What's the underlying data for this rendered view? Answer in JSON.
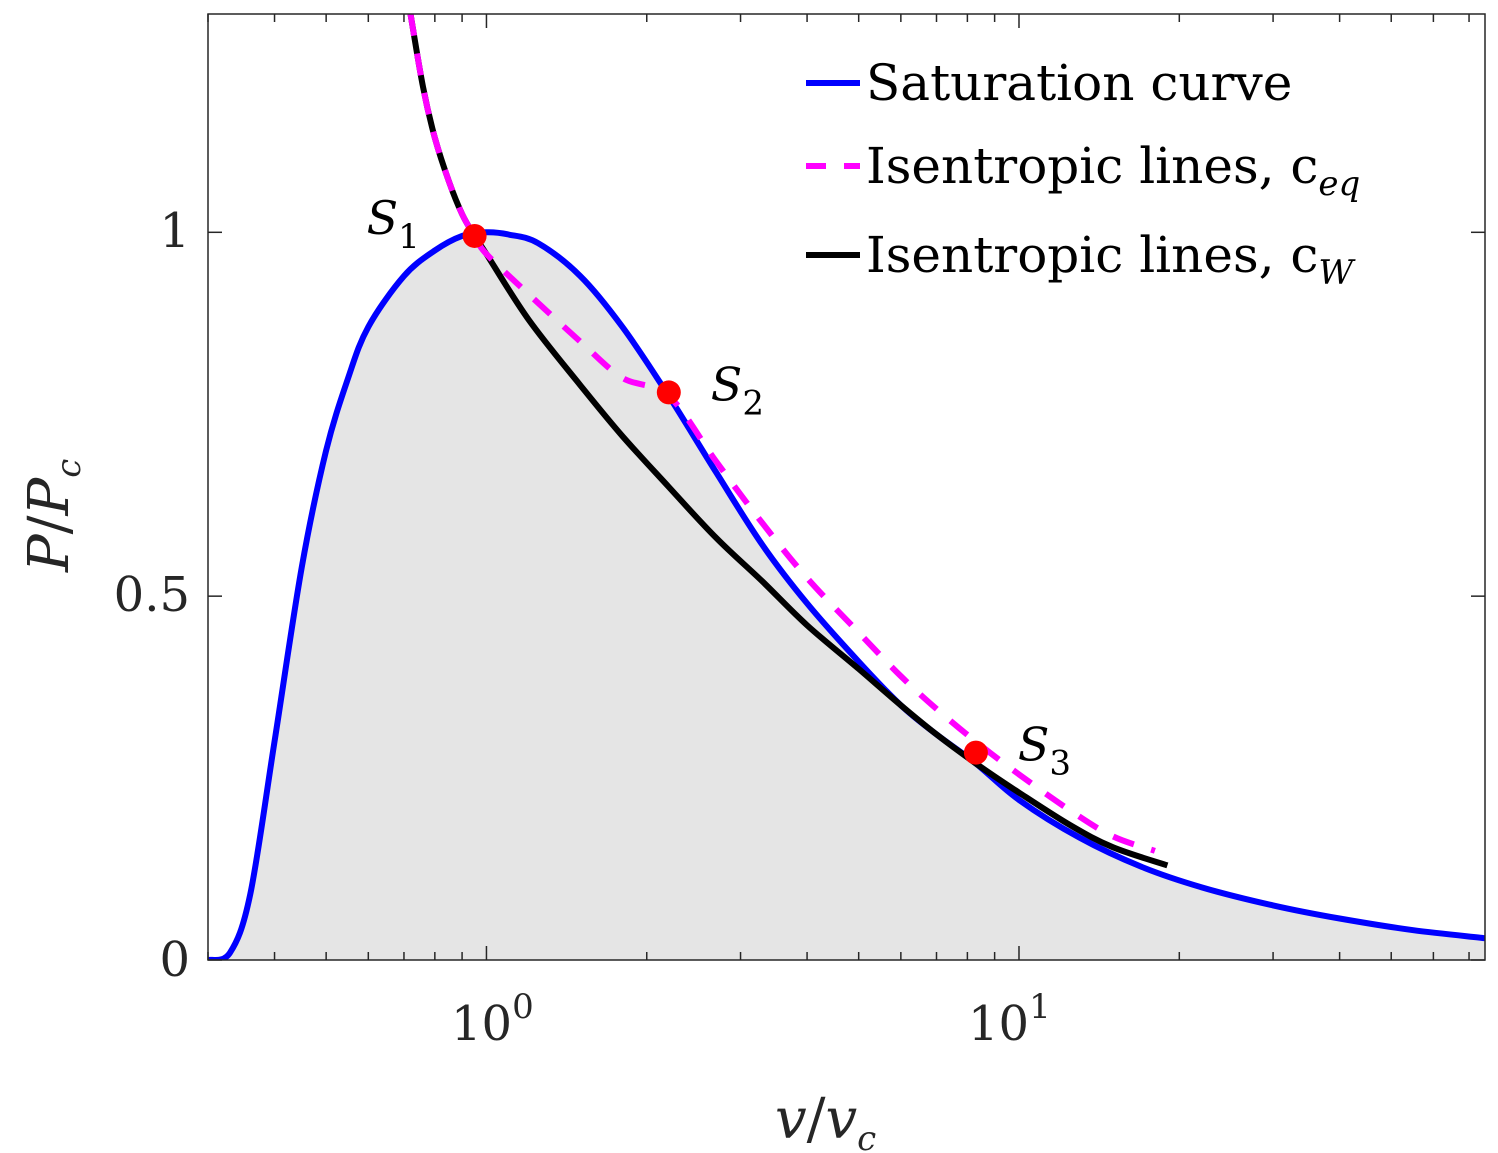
{
  "chart_data": {
    "type": "line",
    "title": "",
    "xlabel": "v/v_c",
    "ylabel": "P/P_c",
    "xscale": "log",
    "xlim": [
      0.3,
      75
    ],
    "ylim": [
      0,
      1.3
    ],
    "grid": false,
    "legend_position": "top-right",
    "x_ticks": [
      {
        "value": 1,
        "base": "10",
        "exp": "0"
      },
      {
        "value": 10,
        "base": "10",
        "exp": "1"
      }
    ],
    "y_ticks": [
      {
        "value": 0,
        "label": "0"
      },
      {
        "value": 0.5,
        "label": "0.5"
      },
      {
        "value": 1,
        "label": "1"
      }
    ],
    "x_label_parts": {
      "main1": "v",
      "slash": "/",
      "main2": "v",
      "sub": "c"
    },
    "y_label_parts": {
      "main1": "P",
      "slash": "/",
      "main2": "P",
      "sub": "c"
    },
    "legend": [
      {
        "id": "sat",
        "base": "Saturation curve",
        "sub": ""
      },
      {
        "id": "ceq",
        "base": "Isentropic lines, c",
        "sub": "eq"
      },
      {
        "id": "cw",
        "base": "Isentropic lines, c",
        "sub": "W"
      }
    ],
    "series": [
      {
        "id": "sat",
        "name": "Saturation curve",
        "color": "#0000ff",
        "style": "solid",
        "fill": "#e5e5e5",
        "x": [
          0.3,
          0.33,
          0.36,
          0.4,
          0.45,
          0.5,
          0.55,
          0.6,
          0.7,
          0.8,
          0.9,
          1.0,
          1.1,
          1.25,
          1.5,
          1.8,
          2.2,
          2.7,
          3.3,
          4,
          5,
          6,
          7,
          8.3,
          10,
          13,
          17,
          22,
          30,
          40,
          55,
          75
        ],
        "y": [
          0.0,
          0.01,
          0.09,
          0.3,
          0.54,
          0.7,
          0.8,
          0.87,
          0.94,
          0.975,
          0.995,
          1.0,
          0.997,
          0.985,
          0.94,
          0.87,
          0.775,
          0.67,
          0.57,
          0.49,
          0.41,
          0.35,
          0.31,
          0.27,
          0.22,
          0.168,
          0.128,
          0.1,
          0.075,
          0.057,
          0.041,
          0.03
        ]
      },
      {
        "id": "ceq",
        "name": "Isentropic lines, c_eq",
        "color": "#ff00ff",
        "style": "dashed",
        "x": [
          0.72,
          0.76,
          0.8,
          0.85,
          0.9,
          0.95,
          1.0,
          1.2,
          1.5,
          1.8,
          2.2,
          2.7,
          3.3,
          4,
          5,
          6,
          7,
          8.3,
          10,
          12.5,
          15,
          18
        ],
        "y": [
          1.3,
          1.2,
          1.13,
          1.07,
          1.025,
          0.995,
          0.97,
          0.915,
          0.85,
          0.8,
          0.775,
          0.685,
          0.6,
          0.525,
          0.45,
          0.39,
          0.345,
          0.3,
          0.255,
          0.205,
          0.17,
          0.15
        ]
      },
      {
        "id": "cw",
        "name": "Isentropic lines, c_W",
        "color": "#000000",
        "style": "solid",
        "x": [
          0.72,
          0.76,
          0.8,
          0.85,
          0.9,
          0.95,
          1.0,
          1.2,
          1.5,
          1.8,
          2.2,
          2.7,
          3.3,
          4,
          5,
          6,
          7,
          8.3,
          10,
          12.5,
          15,
          19
        ],
        "y": [
          1.3,
          1.2,
          1.13,
          1.07,
          1.025,
          0.995,
          0.97,
          0.88,
          0.79,
          0.72,
          0.65,
          0.58,
          0.52,
          0.46,
          0.4,
          0.35,
          0.31,
          0.27,
          0.23,
          0.185,
          0.155,
          0.13
        ]
      }
    ],
    "points": [
      {
        "label": "S",
        "sub": "1",
        "x": 0.95,
        "y": 0.995,
        "label_side": "left",
        "color": "#ff0000"
      },
      {
        "label": "S",
        "sub": "2",
        "x": 2.2,
        "y": 0.78,
        "label_side": "right",
        "color": "#ff0000"
      },
      {
        "label": "S",
        "sub": "3",
        "x": 8.3,
        "y": 0.285,
        "label_side": "right",
        "color": "#ff0000"
      }
    ]
  }
}
